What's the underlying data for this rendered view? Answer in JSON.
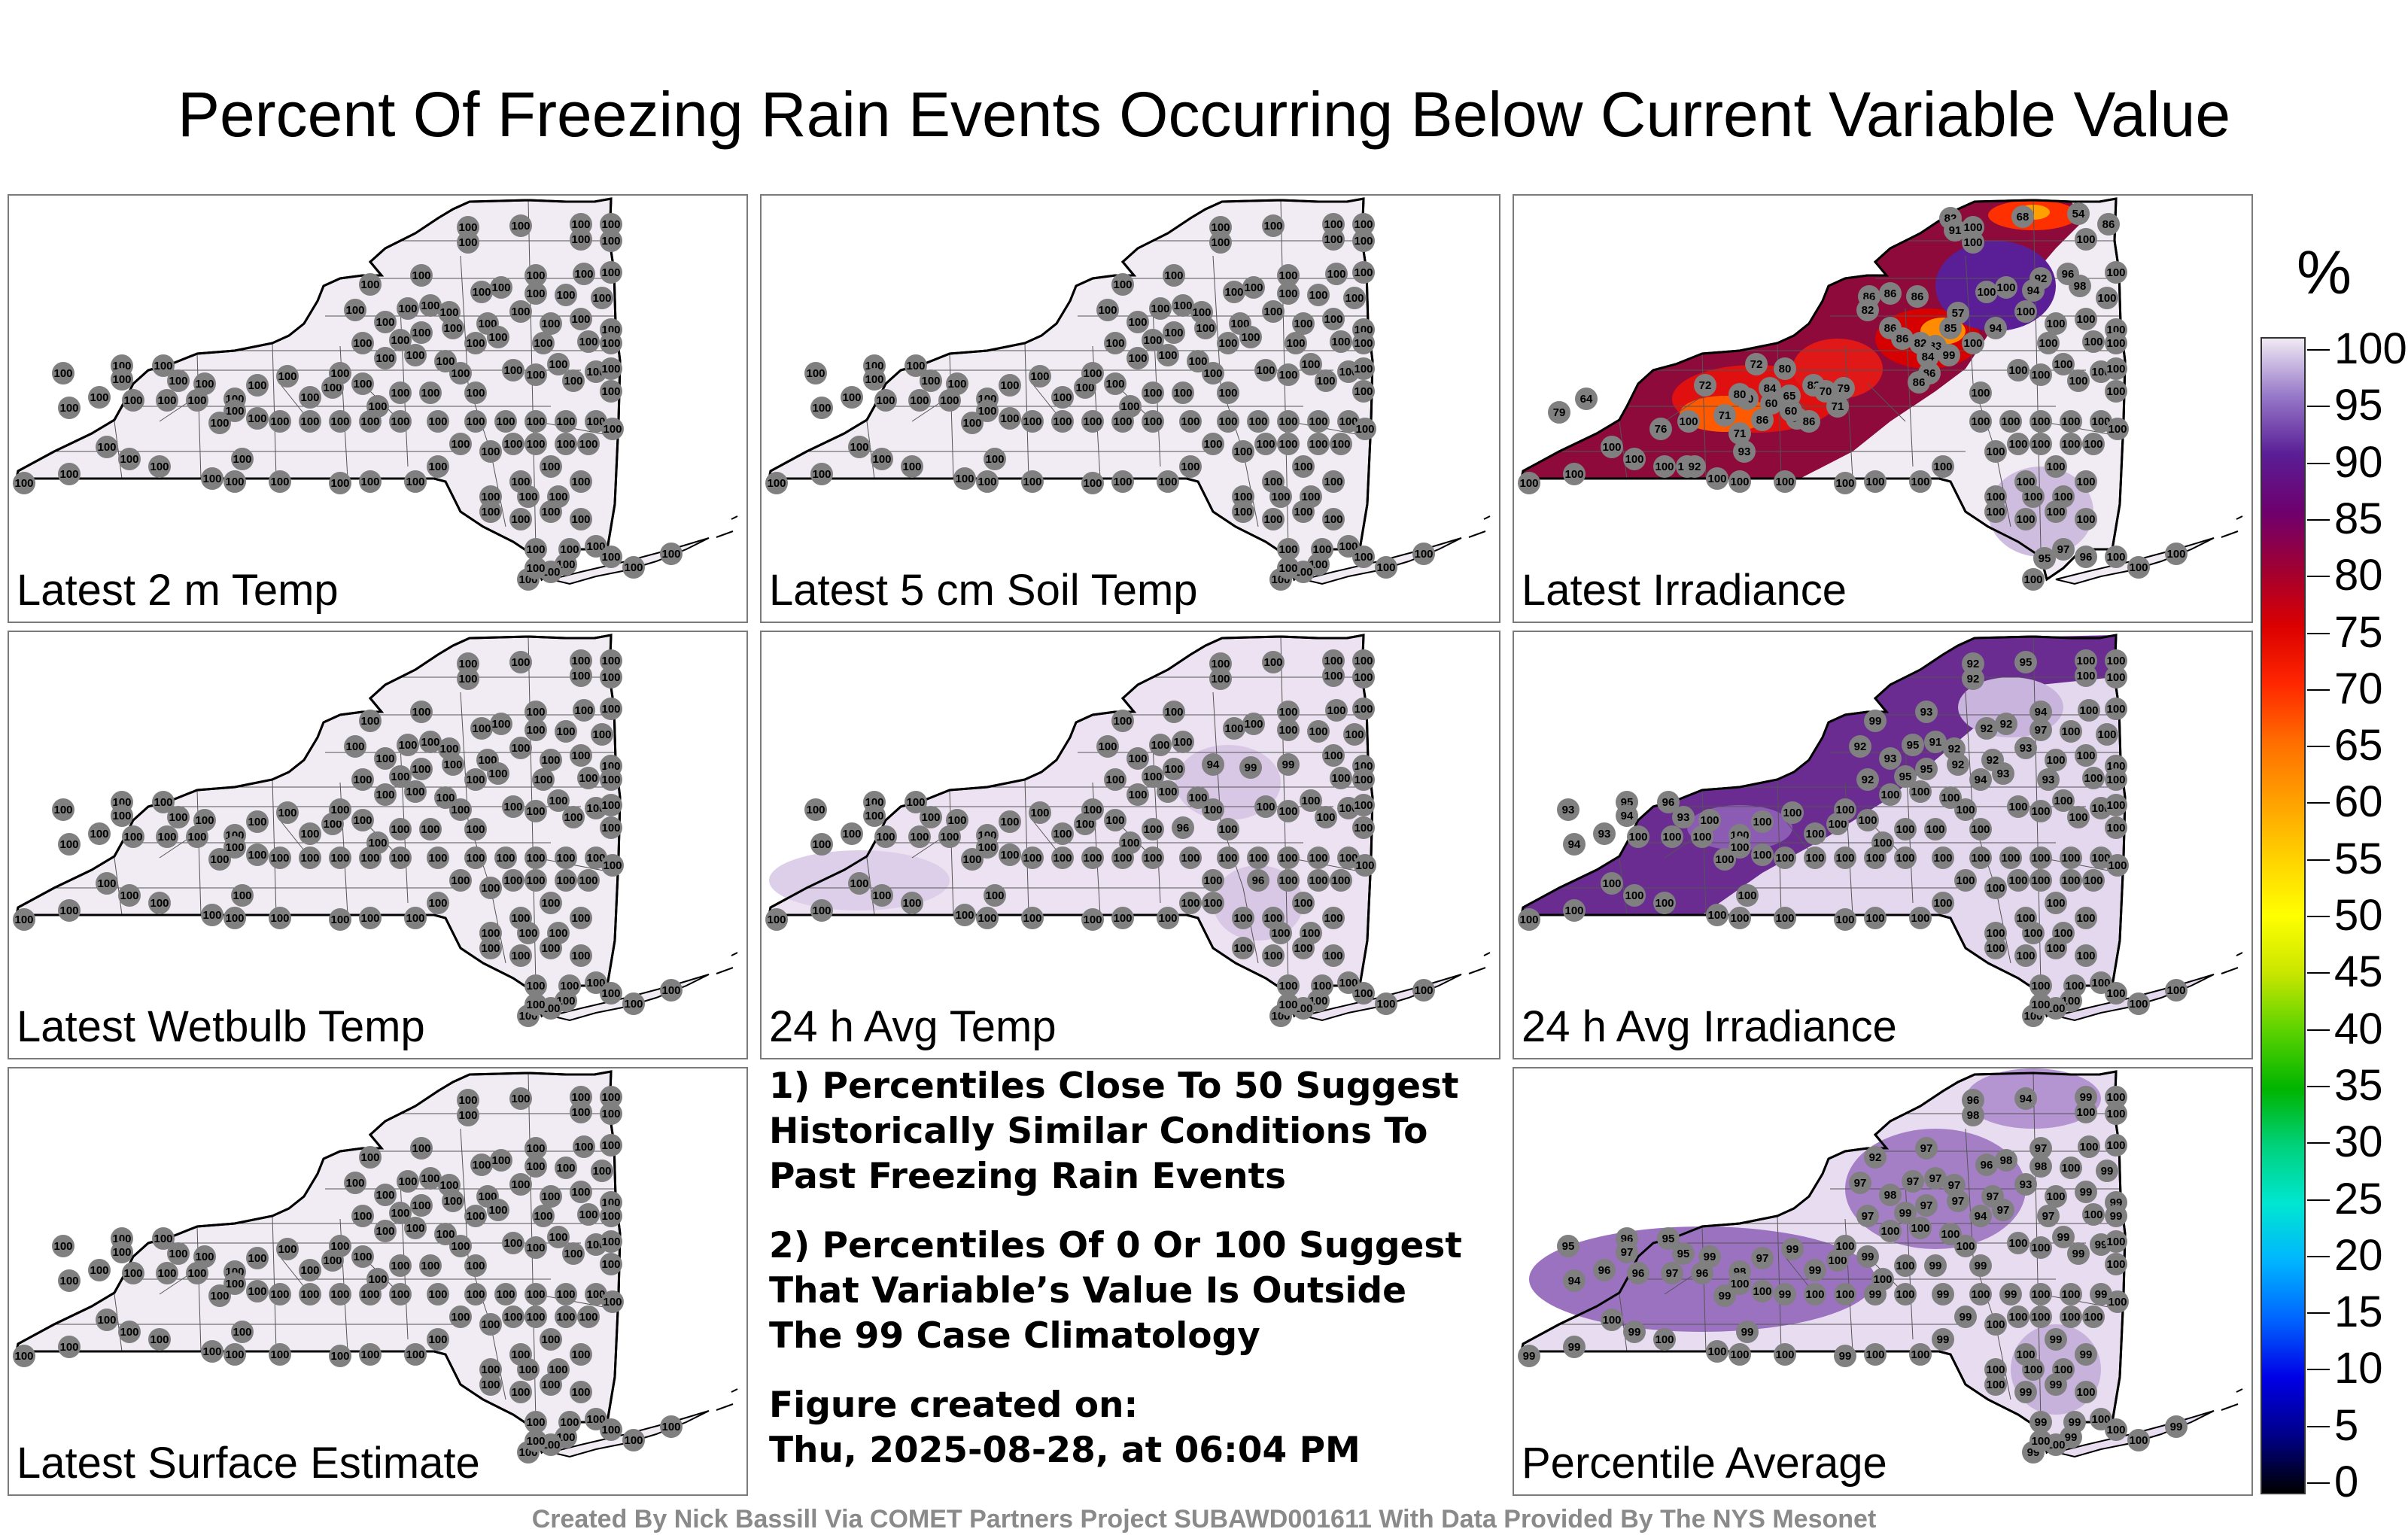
{
  "title": "Percent Of Freezing Rain Events Occurring Below Current Variable Value",
  "panels": [
    {
      "label": "Latest 2 m Temp",
      "scheme": "uniform",
      "stations": "all100"
    },
    {
      "label": "Latest 5 cm Soil Temp",
      "scheme": "uniform",
      "stations": "all100"
    },
    {
      "label": "Latest Irradiance",
      "scheme": "irradiance",
      "stations": "irradiance"
    },
    {
      "label": "Latest Wetbulb Temp",
      "scheme": "uniform",
      "stations": "all100"
    },
    {
      "label": "24 h Avg Temp",
      "scheme": "light",
      "stations": "avgtemp"
    },
    {
      "label": "24 h Avg Irradiance",
      "scheme": "avgirr",
      "stations": "avgirr"
    },
    {
      "label": "Latest Surface Estimate",
      "scheme": "uniform",
      "stations": "all100"
    },
    {
      "label": "Percentile Average",
      "scheme": "pctavg",
      "stations": "pctavg"
    }
  ],
  "station_values": {
    "irradiance": [
      "82",
      "91",
      "68",
      "54",
      "86",
      "86",
      "86",
      "82",
      "86",
      "92",
      "96",
      "94",
      "98",
      "86",
      "86",
      "57",
      "85",
      "83",
      "82",
      "84",
      "99",
      "100",
      "94",
      "86",
      "86",
      "72",
      "80",
      "82",
      "84",
      "70",
      "65",
      "79",
      "70",
      "86",
      "60",
      "86",
      "60",
      "71",
      "64",
      "79",
      "71",
      "86",
      "72",
      "71",
      "80",
      "76",
      "100",
      "100",
      "93",
      "92",
      "97",
      "95",
      "96"
    ],
    "avgtemp": [
      "94",
      "99",
      "99",
      "96",
      "96",
      "100",
      "100"
    ],
    "avgirr": [
      "92",
      "92",
      "95",
      "99",
      "92",
      "93",
      "94",
      "93",
      "95",
      "91",
      "92",
      "92",
      "92",
      "93",
      "97",
      "95",
      "95",
      "92",
      "92",
      "92",
      "94",
      "93",
      "93",
      "95",
      "96",
      "93",
      "94",
      "93",
      "94",
      "93"
    ],
    "pctavg": [
      "96",
      "98",
      "94",
      "92",
      "97",
      "97",
      "97",
      "98",
      "97",
      "97",
      "97",
      "96",
      "98",
      "93",
      "98",
      "99",
      "97",
      "97",
      "97",
      "97",
      "94",
      "97",
      "97",
      "96",
      "95",
      "95",
      "97",
      "96",
      "94",
      "95",
      "96",
      "97",
      "96",
      "98",
      "97",
      "99",
      "99"
    ]
  },
  "notes": [
    [
      "1) Percentiles Close To 50 Suggest",
      "Historically Similar Conditions To",
      "Past Freezing Rain Events"
    ],
    [
      "2) Percentiles Of 0 Or 100 Suggest",
      "That Variable’s Value Is Outside",
      "The 99 Case Climatology"
    ],
    [
      "Figure created on:",
      "Thu, 2025-08-28, at 06:04 PM"
    ]
  ],
  "colorbar": {
    "unit": "%",
    "ticks": [
      "100",
      "95",
      "90",
      "85",
      "80",
      "75",
      "70",
      "65",
      "60",
      "55",
      "50",
      "45",
      "40",
      "35",
      "30",
      "25",
      "20",
      "15",
      "10",
      "5",
      "0"
    ],
    "colors": [
      "#000000",
      "#00008a",
      "#0000e6",
      "#0064ff",
      "#00b4ff",
      "#00e6d2",
      "#00d27d",
      "#00b400",
      "#5ad200",
      "#c8e600",
      "#ffff00",
      "#ffd200",
      "#ffa000",
      "#ff6e00",
      "#ff2800",
      "#dc0000",
      "#a00032",
      "#6e006e",
      "#5a1e96",
      "#9678c8",
      "#f0eaf4"
    ]
  },
  "credit": "Created By Nick Bassill Via COMET Partners Project SUBAWD001611 With Data Provided By The NYS Mesonet"
}
